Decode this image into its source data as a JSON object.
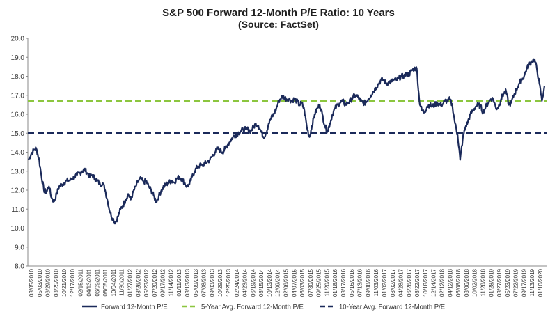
{
  "chart_data": {
    "type": "line",
    "title": "S&P 500 Forward 12-Month P/E Ratio: 10 Years",
    "subtitle": "(Source: FactSet)",
    "xlabel": "",
    "ylabel": "",
    "ylim": [
      8.0,
      20.0
    ],
    "yticks": [
      "20.0",
      "19.0",
      "18.0",
      "17.0",
      "16.0",
      "15.0",
      "14.0",
      "13.0",
      "12.0",
      "11.0",
      "10.0",
      "9.0",
      "8.0"
    ],
    "xticks": [
      "03/05/2010",
      "05/03/2010",
      "06/29/2010",
      "08/25/2010",
      "10/21/2010",
      "12/17/2010",
      "02/15/2011",
      "04/13/2011",
      "06/09/2011",
      "08/05/2011",
      "10/04/2011",
      "11/30/2011",
      "01/27/2012",
      "03/26/2012",
      "05/23/2012",
      "07/20/2012",
      "09/17/2012",
      "11/14/2012",
      "01/11/2013",
      "03/13/2013",
      "05/09/2013",
      "07/08/2013",
      "09/03/2013",
      "10/29/2013",
      "12/25/2013",
      "02/24/2014",
      "04/23/2014",
      "06/19/2014",
      "08/15/2014",
      "10/13/2014",
      "12/09/2014",
      "02/06/2015",
      "04/07/2015",
      "06/03/2015",
      "07/30/2015",
      "09/25/2015",
      "11/20/2015",
      "01/18/2016",
      "03/17/2016",
      "05/16/2016",
      "07/13/2016",
      "09/08/2016",
      "11/03/2016",
      "01/02/2017",
      "03/02/2017",
      "04/28/2017",
      "06/26/2017",
      "08/22/2017",
      "10/18/2017",
      "12/14/2017",
      "02/12/2018",
      "04/12/2018",
      "06/08/2018",
      "08/06/2018",
      "10/02/2018",
      "11/28/2018",
      "01/28/2019",
      "03/27/2019",
      "05/23/2019",
      "07/22/2019",
      "09/17/2019",
      "11/13/2019",
      "01/10/2020"
    ],
    "grid": false,
    "legend_position": "bottom",
    "series": [
      {
        "name": "Forward 12-Month P/E",
        "color": "#1b2a5a",
        "style": "solid",
        "values": [
          13.6,
          13.9,
          14.1,
          14.2,
          13.7,
          12.8,
          12.0,
          11.9,
          12.2,
          11.6,
          11.4,
          11.8,
          12.2,
          12.3,
          12.4,
          12.5,
          12.5,
          12.6,
          12.7,
          12.8,
          12.9,
          13.0,
          13.1,
          12.9,
          12.7,
          12.8,
          12.6,
          12.5,
          12.3,
          12.4,
          12.0,
          11.4,
          10.8,
          10.5,
          10.3,
          10.6,
          11.0,
          11.2,
          11.5,
          11.8,
          11.5,
          11.9,
          12.2,
          12.5,
          12.6,
          12.4,
          12.5,
          12.2,
          12.0,
          11.7,
          11.4,
          11.7,
          12.0,
          12.2,
          12.3,
          12.4,
          12.5,
          12.4,
          12.6,
          12.7,
          12.6,
          12.4,
          12.2,
          12.3,
          12.7,
          13.0,
          13.2,
          13.3,
          13.3,
          13.4,
          13.5,
          13.6,
          13.8,
          14.0,
          14.2,
          14.1,
          14.0,
          14.2,
          14.4,
          14.6,
          14.8,
          14.9,
          15.0,
          15.1,
          15.2,
          15.2,
          15.2,
          15.1,
          15.3,
          15.5,
          15.4,
          15.1,
          14.8,
          15.0,
          15.5,
          15.8,
          16.0,
          16.3,
          16.7,
          16.9,
          16.9,
          16.8,
          16.8,
          16.7,
          16.8,
          16.7,
          16.5,
          16.6,
          16.2,
          15.3,
          14.8,
          15.4,
          16.0,
          16.3,
          16.5,
          16.0,
          15.4,
          15.1,
          15.5,
          16.0,
          16.3,
          16.5,
          16.6,
          16.7,
          16.5,
          16.6,
          16.7,
          16.9,
          17.0,
          16.9,
          16.7,
          16.6,
          16.6,
          16.8,
          17.0,
          17.2,
          17.4,
          17.6,
          17.8,
          17.8,
          17.6,
          17.7,
          17.7,
          17.8,
          17.8,
          17.9,
          18.0,
          18.0,
          18.1,
          18.1,
          18.3,
          18.4,
          18.4,
          16.7,
          16.2,
          16.1,
          16.4,
          16.5,
          16.4,
          16.5,
          16.6,
          16.5,
          16.5,
          16.7,
          16.7,
          16.8,
          16.4,
          15.5,
          14.9,
          13.6,
          14.7,
          15.3,
          15.6,
          16.0,
          16.2,
          16.4,
          16.5,
          16.4,
          16.1,
          16.4,
          16.6,
          16.8,
          16.8,
          16.3,
          16.4,
          16.8,
          17.1,
          17.2,
          16.5,
          16.6,
          17.0,
          17.3,
          17.6,
          17.8,
          18.0,
          18.4,
          18.6,
          18.8,
          18.9,
          18.4,
          17.6,
          16.7,
          17.5
        ]
      },
      {
        "name": "5-Year Avg. Forward 12-Month P/E",
        "color": "#8cc63f",
        "style": "dashed",
        "values": [
          16.7
        ]
      },
      {
        "name": "10-Year Avg. Forward 12-Month P/E",
        "color": "#1b2a5a",
        "style": "dashed",
        "values": [
          15.0
        ]
      }
    ]
  }
}
